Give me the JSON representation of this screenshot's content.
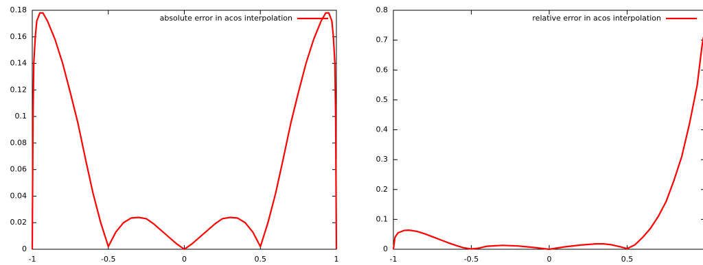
{
  "chart_data": [
    {
      "type": "line",
      "x": [
        -1,
        -0.995,
        -0.99,
        -0.98,
        -0.97,
        -0.95,
        -0.93,
        -0.9,
        -0.85,
        -0.8,
        -0.75,
        -0.7,
        -0.65,
        -0.6,
        -0.55,
        -0.5,
        -0.45,
        -0.4,
        -0.35,
        -0.3,
        -0.25,
        -0.2,
        -0.15,
        -0.1,
        -0.05,
        0,
        0.05,
        0.1,
        0.15,
        0.2,
        0.25,
        0.3,
        0.35,
        0.4,
        0.45,
        0.5,
        0.55,
        0.6,
        0.65,
        0.7,
        0.75,
        0.8,
        0.85,
        0.9,
        0.93,
        0.95,
        0.97,
        0.98,
        0.99,
        0.995,
        1
      ],
      "series": [
        {
          "name": "absolute error in acos interpolation",
          "color": "#ff0000",
          "values": [
            0,
            0.1,
            0.14,
            0.16,
            0.172,
            0.178,
            0.178,
            0.172,
            0.158,
            0.14,
            0.118,
            0.095,
            0.068,
            0.042,
            0.02,
            0.002,
            0.013,
            0.02,
            0.0235,
            0.024,
            0.023,
            0.019,
            0.014,
            0.009,
            0.004,
            0,
            0.004,
            0.009,
            0.014,
            0.019,
            0.023,
            0.024,
            0.0235,
            0.02,
            0.013,
            0.002,
            0.02,
            0.042,
            0.068,
            0.095,
            0.118,
            0.14,
            0.158,
            0.172,
            0.178,
            0.178,
            0.172,
            0.16,
            0.14,
            0.1,
            0
          ]
        }
      ],
      "xlim": [
        -1,
        1
      ],
      "ylim": [
        0,
        0.18
      ],
      "xticks": [
        -1,
        -0.5,
        0,
        0.5,
        1
      ],
      "yticks": [
        0,
        0.02,
        0.04,
        0.06,
        0.08,
        0.1,
        0.12,
        0.14,
        0.16,
        0.18
      ],
      "legend": "top-right"
    },
    {
      "type": "line",
      "x": [
        -1,
        -0.99,
        -0.97,
        -0.93,
        -0.9,
        -0.85,
        -0.8,
        -0.75,
        -0.7,
        -0.65,
        -0.6,
        -0.55,
        -0.5,
        -0.45,
        -0.4,
        -0.3,
        -0.2,
        -0.1,
        0,
        0.1,
        0.2,
        0.3,
        0.35,
        0.4,
        0.45,
        0.5,
        0.55,
        0.6,
        0.65,
        0.7,
        0.75,
        0.8,
        0.85,
        0.9,
        0.95,
        0.98,
        0.99
      ],
      "series": [
        {
          "name": "relative error in acos interpolation",
          "color": "#ff0000",
          "values": [
            0,
            0.04,
            0.055,
            0.063,
            0.064,
            0.06,
            0.052,
            0.042,
            0.032,
            0.022,
            0.013,
            0.005,
            0.001,
            0.004,
            0.01,
            0.013,
            0.011,
            0.006,
            0,
            0.008,
            0.014,
            0.018,
            0.018,
            0.015,
            0.009,
            0.002,
            0.015,
            0.04,
            0.07,
            0.11,
            0.16,
            0.23,
            0.31,
            0.42,
            0.55,
            0.68,
            0.71
          ]
        }
      ],
      "xlim": [
        -1,
        1
      ],
      "ylim": [
        0,
        0.8
      ],
      "xticks": [
        -1,
        -0.5,
        0,
        0.5
      ],
      "yticks": [
        0,
        0.1,
        0.2,
        0.3,
        0.4,
        0.5,
        0.6,
        0.7,
        0.8
      ],
      "legend": "top-right"
    }
  ]
}
